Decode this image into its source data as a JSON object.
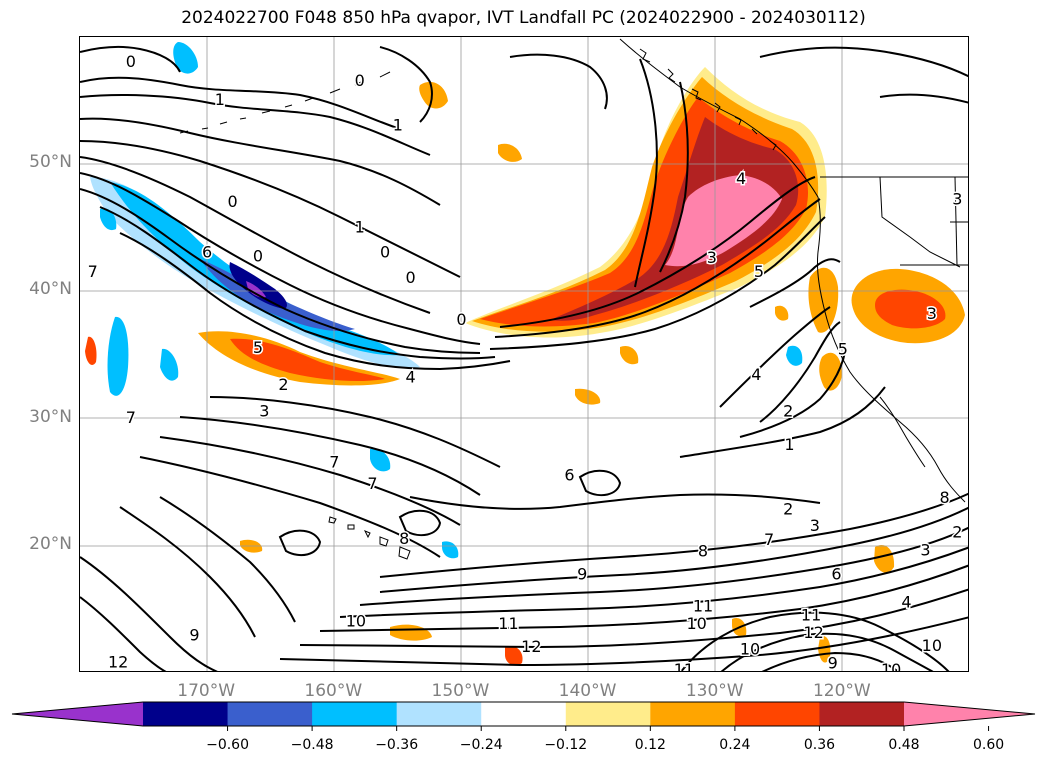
{
  "title": "2024022700 F048 850 hPa qvapor, IVT Landfall PC (2024022900 - 2024030112)",
  "lat_labels": [
    {
      "text": "50°N",
      "lat": 50
    },
    {
      "text": "40°N",
      "lat": 40
    },
    {
      "text": "30°N",
      "lat": 30
    },
    {
      "text": "20°N",
      "lat": 20
    }
  ],
  "lon_labels": [
    {
      "text": "170°W",
      "lon": -170
    },
    {
      "text": "160°W",
      "lon": -160
    },
    {
      "text": "150°W",
      "lon": -150
    },
    {
      "text": "140°W",
      "lon": -140
    },
    {
      "text": "130°W",
      "lon": -130
    },
    {
      "text": "120°W",
      "lon": -120
    }
  ],
  "map_extent": {
    "lon_min": -180,
    "lon_max": -110,
    "lat_min": 10,
    "lat_max": 60
  },
  "colorbar": {
    "tick_labels": [
      "−0.60",
      "−0.48",
      "−0.36",
      "−0.24",
      "−0.12",
      "0.12",
      "0.24",
      "0.36",
      "0.48",
      "0.60"
    ],
    "colors": [
      "#9932cc",
      "#00008b",
      "#3a5fcd",
      "#00bfff",
      "#b0e2ff",
      "#ffffff",
      "#ffec8b",
      "#ffa500",
      "#ff4500",
      "#b22222",
      "#ff82ab"
    ],
    "extend": "both"
  },
  "contour_labels": [
    {
      "text": "0",
      "lon": -176,
      "lat": 58
    },
    {
      "text": "1",
      "lon": -169,
      "lat": 55
    },
    {
      "text": "1",
      "lon": -155,
      "lat": 53
    },
    {
      "text": "0",
      "lon": -158,
      "lat": 56.5
    },
    {
      "text": "0",
      "lon": -168,
      "lat": 47
    },
    {
      "text": "6",
      "lon": -170,
      "lat": 43
    },
    {
      "text": "0",
      "lon": -166,
      "lat": 42.7
    },
    {
      "text": "1",
      "lon": -158,
      "lat": 45
    },
    {
      "text": "0",
      "lon": -156,
      "lat": 43
    },
    {
      "text": "0",
      "lon": -154,
      "lat": 41
    },
    {
      "text": "0",
      "lon": -150,
      "lat": 37.7
    },
    {
      "text": "7",
      "lon": -179,
      "lat": 41.5
    },
    {
      "text": "5",
      "lon": -166,
      "lat": 35.5
    },
    {
      "text": "2",
      "lon": -164,
      "lat": 32.6
    },
    {
      "text": "3",
      "lon": -165.5,
      "lat": 30.5
    },
    {
      "text": "4",
      "lon": -154,
      "lat": 33.2
    },
    {
      "text": "7",
      "lon": -176,
      "lat": 30
    },
    {
      "text": "7",
      "lon": -160,
      "lat": 26.5
    },
    {
      "text": "7",
      "lon": -157,
      "lat": 24.8
    },
    {
      "text": "8",
      "lon": -154.5,
      "lat": 20.5
    },
    {
      "text": "6",
      "lon": -141.5,
      "lat": 25.5
    },
    {
      "text": "4",
      "lon": -128,
      "lat": 48.8
    },
    {
      "text": "3",
      "lon": -130.3,
      "lat": 42.6
    },
    {
      "text": "5",
      "lon": -126.6,
      "lat": 41.5
    },
    {
      "text": "4",
      "lon": -126.8,
      "lat": 33.4
    },
    {
      "text": "2",
      "lon": -124.3,
      "lat": 30.5
    },
    {
      "text": "1",
      "lon": -124.2,
      "lat": 27.9
    },
    {
      "text": "5",
      "lon": -120,
      "lat": 35.4
    },
    {
      "text": "3",
      "lon": -113,
      "lat": 38.2
    },
    {
      "text": "3",
      "lon": -111,
      "lat": 47.2
    },
    {
      "text": "2",
      "lon": -124.3,
      "lat": 22.8
    },
    {
      "text": "3",
      "lon": -122.2,
      "lat": 21.5
    },
    {
      "text": "7",
      "lon": -125.8,
      "lat": 20.4
    },
    {
      "text": "8",
      "lon": -131,
      "lat": 19.5
    },
    {
      "text": "9",
      "lon": -140.5,
      "lat": 17.7
    },
    {
      "text": "8",
      "lon": -112,
      "lat": 23.7
    },
    {
      "text": "2",
      "lon": -111,
      "lat": 21
    },
    {
      "text": "3",
      "lon": -113.5,
      "lat": 19.6
    },
    {
      "text": "6",
      "lon": -120.5,
      "lat": 17.7
    },
    {
      "text": "4",
      "lon": -115,
      "lat": 15.5
    },
    {
      "text": "11",
      "lon": -131,
      "lat": 15.2
    },
    {
      "text": "10",
      "lon": -131.5,
      "lat": 13.8
    },
    {
      "text": "11",
      "lon": -122.5,
      "lat": 14.5
    },
    {
      "text": "12",
      "lon": -122.3,
      "lat": 13.1
    },
    {
      "text": "10",
      "lon": -127.3,
      "lat": 11.8
    },
    {
      "text": "9",
      "lon": -120.8,
      "lat": 10.7
    },
    {
      "text": "10",
      "lon": -113,
      "lat": 12.1
    },
    {
      "text": "10",
      "lon": -116.2,
      "lat": 10.2
    },
    {
      "text": "11",
      "lon": -132.5,
      "lat": 10.2
    },
    {
      "text": "10",
      "lon": -158.3,
      "lat": 14
    },
    {
      "text": "11",
      "lon": -146.3,
      "lat": 13.8
    },
    {
      "text": "12",
      "lon": -144.5,
      "lat": 12
    },
    {
      "text": "9",
      "lon": -171,
      "lat": 12.9
    },
    {
      "text": "12",
      "lon": -177,
      "lat": 10.8
    }
  ]
}
